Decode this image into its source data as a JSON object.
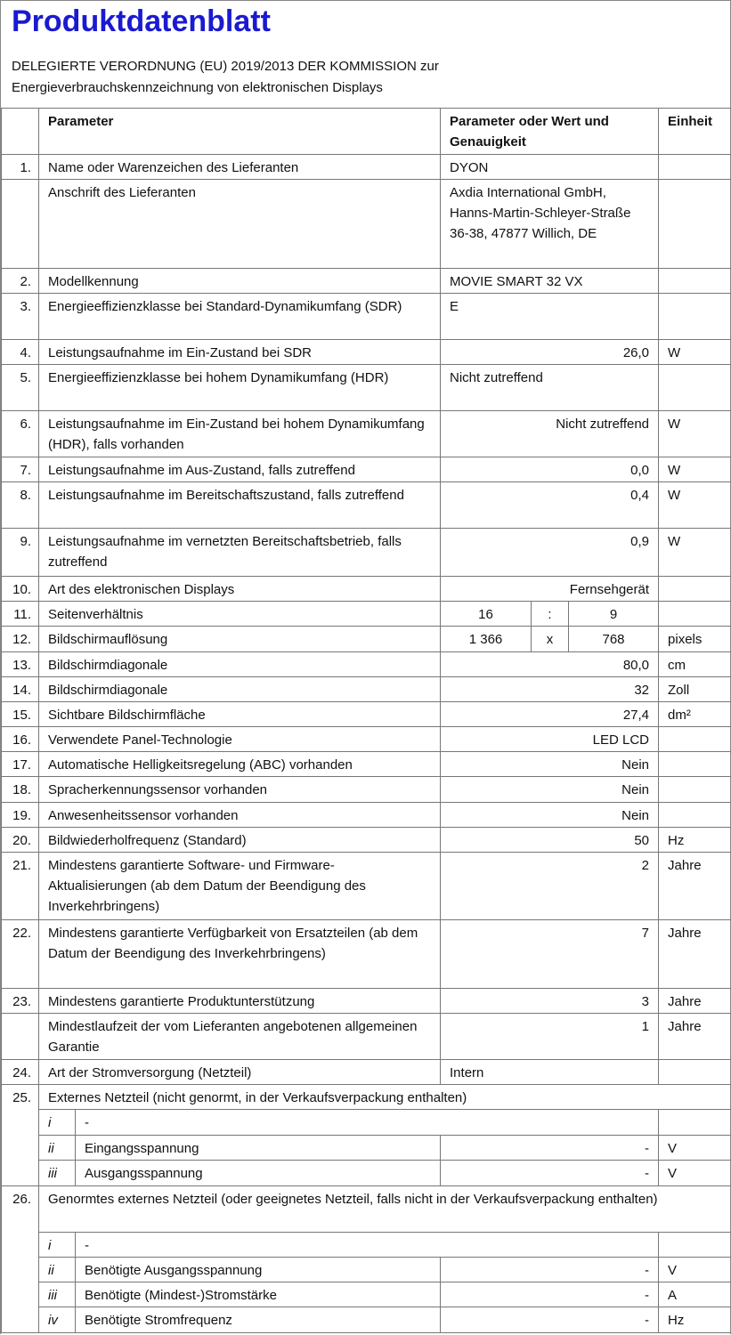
{
  "header": {
    "title": "Produktdatenblatt",
    "subtitle": "DELEGIERTE VERORDNUNG (EU) 2019/2013 DER KOMMISSION zur Energieverbrauchskennzeichnung von elektronischen Displays"
  },
  "table": {
    "columns": [
      "Parameter",
      "Parameter oder Wert und Genauigkeit",
      "Einheit"
    ],
    "rows": [
      {
        "number": "1.",
        "parameter": "Name oder Warenzeichen des Lieferanten",
        "value": "DYON"
      },
      {
        "parameter": "Anschrift des Lieferanten",
        "value": "Axdia International GmbH, Hanns-Martin-Schleyer-Straße 36-38, 47877 Willich, DE"
      },
      {
        "number": "2.",
        "parameter": "Modellkennung",
        "value": "MOVIE SMART 32 VX"
      },
      {
        "number": "3.",
        "parameter": "Energieeffizienzklasse bei Standard-Dynamikumfang (SDR)",
        "value": "E"
      },
      {
        "number": "4.",
        "parameter": "Leistungsaufnahme im Ein-Zustand bei SDR",
        "value": "26,0",
        "unit": "W"
      },
      {
        "number": "5.",
        "parameter": "Energieeffizienzklasse bei hohem Dynamikumfang (HDR)",
        "value": "Nicht zutreffend"
      },
      {
        "number": "6.",
        "parameter": "Leistungsaufnahme im Ein-Zustand bei hohem Dynamikumfang (HDR), falls vorhanden",
        "value": "Nicht zutreffend",
        "unit": "W"
      },
      {
        "number": "7.",
        "parameter": "Leistungsaufnahme im Aus-Zustand, falls zutreffend",
        "value": "0,0",
        "unit": "W"
      },
      {
        "number": "8.",
        "parameter": "Leistungsaufnahme im Bereitschaftszustand, falls zutreffend",
        "value": "0,4",
        "unit": "W"
      },
      {
        "number": "9.",
        "parameter": "Leistungsaufnahme im vernetzten Bereitschaftsbetrieb, falls zutreffend",
        "value": "0,9",
        "unit": "W"
      },
      {
        "number": "10.",
        "parameter": "Art des elektronischen Displays",
        "value": "Fernsehgerät"
      },
      {
        "number": "11.",
        "parameter": "Seitenverhältnis",
        "value": [
          "16",
          ":",
          "9"
        ]
      },
      {
        "number": "12.",
        "parameter": "Bildschirmauflösung",
        "value": [
          "1 366",
          "x",
          "768"
        ],
        "unit": "pixels"
      },
      {
        "number": "13.",
        "parameter": "Bildschirmdiagonale",
        "value": "80,0",
        "unit": "cm"
      },
      {
        "number": "14.",
        "parameter": "Bildschirmdiagonale",
        "value": "32",
        "unit": "Zoll"
      },
      {
        "number": "15.",
        "parameter": "Sichtbare Bildschirmfläche",
        "value": "27,4",
        "unit": "dm²"
      },
      {
        "number": "16.",
        "parameter": "Verwendete Panel-Technologie",
        "value": "LED LCD"
      },
      {
        "number": "17.",
        "parameter": "Automatische Helligkeitsregelung (ABC) vorhanden",
        "value": "Nein"
      },
      {
        "number": "18.",
        "parameter": "Spracherkennungssensor vorhanden",
        "value": "Nein"
      },
      {
        "number": "19.",
        "parameter": "Anwesenheitssensor vorhanden",
        "value": "Nein"
      },
      {
        "number": "20.",
        "parameter": "Bildwiederholfrequenz (Standard)",
        "value": "50",
        "unit": "Hz"
      },
      {
        "number": "21.",
        "parameter": "Mindestens garantierte Software- und Firmware-Aktualisierungen (ab dem Datum der Beendigung des Inverkehrbringens)",
        "value": "2",
        "unit": "Jahre"
      },
      {
        "number": "22.",
        "parameter": "Mindestens garantierte Verfügbarkeit von Ersatzteilen (ab dem Datum der Beendigung des Inverkehrbringens)",
        "value": "7",
        "unit": "Jahre"
      },
      {
        "number": "23.",
        "parameter": "Mindestens garantierte Produktunterstützung",
        "value": "3",
        "unit": "Jahre"
      },
      {
        "parameter": "Mindestlaufzeit der vom Lieferanten angebotenen allgemeinen Garantie",
        "value": "1",
        "unit": "Jahre"
      },
      {
        "number": "24.",
        "parameter": "Art der Stromversorgung (Netzteil)",
        "value": "Intern"
      },
      {
        "number": "25.",
        "parameter": "Externes Netzteil (nicht genormt, in der Verkaufsverpackung enthalten)",
        "items": [
          {
            "number": "i",
            "parameter": "-"
          },
          {
            "number": "ii",
            "parameter": "Eingangsspannung",
            "value": "-",
            "unit": "V"
          },
          {
            "number": "iii",
            "parameter": "Ausgangsspannung",
            "value": "-",
            "unit": "V"
          }
        ]
      },
      {
        "number": "26.",
        "parameter": "Genormtes externes Netzteil (oder geeignetes Netzteil, falls nicht in der Verkaufsverpackung enthalten)",
        "items": [
          {
            "number": "i",
            "parameter": "-"
          },
          {
            "number": "ii",
            "parameter": "Benötigte Ausgangsspannung",
            "value": "-",
            "unit": "V"
          },
          {
            "number": "iii",
            "parameter": "Benötigte (Mindest-)Stromstärke",
            "value": "-",
            "unit": "A"
          },
          {
            "number": "iv",
            "parameter": "Benötigte Stromfrequenz",
            "value": "-",
            "unit": "Hz"
          }
        ]
      }
    ]
  }
}
